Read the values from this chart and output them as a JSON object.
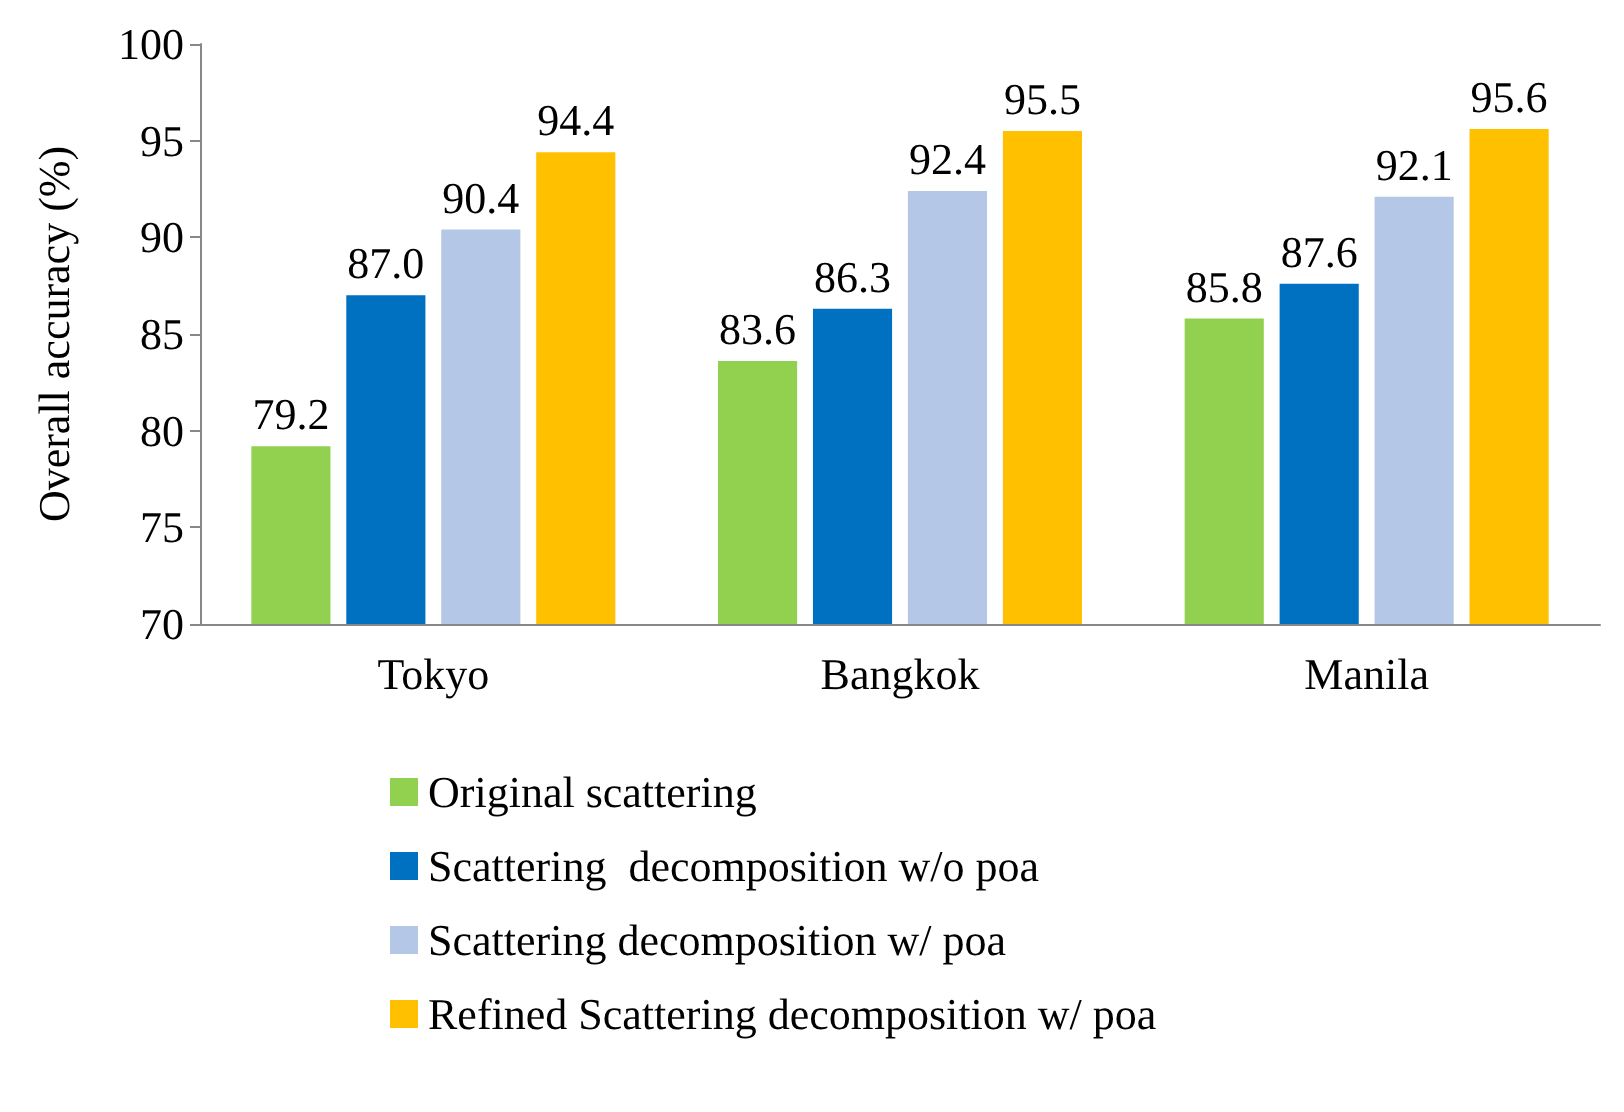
{
  "chart_data": {
    "type": "bar",
    "ylabel": "Overall accuracy (%)",
    "categories": [
      "Tokyo",
      "Bangkok",
      "Manila"
    ],
    "series": [
      {
        "name": "Original scattering",
        "color": "#92d050",
        "values": [
          79.2,
          83.6,
          85.8
        ],
        "value_labels": [
          "79.2",
          "83.6",
          "85.8"
        ]
      },
      {
        "name": "Scattering  decomposition w/o poa",
        "color": "#0070c0",
        "values": [
          87.0,
          86.3,
          87.6
        ],
        "value_labels": [
          "87.0",
          "86.3",
          "87.6"
        ]
      },
      {
        "name": "Scattering decomposition w/ poa",
        "color": "#b4c7e7",
        "values": [
          90.4,
          92.4,
          92.1
        ],
        "value_labels": [
          "90.4",
          "92.4",
          "92.1"
        ]
      },
      {
        "name": "Refined Scattering decomposition w/ poa",
        "color": "#ffc000",
        "values": [
          94.4,
          95.5,
          95.6
        ],
        "value_labels": [
          "94.4",
          "95.5",
          "95.6"
        ]
      }
    ],
    "ylim": [
      70,
      100
    ],
    "yticks": [
      70,
      75,
      80,
      85,
      90,
      95,
      100
    ],
    "grid": false,
    "legend": "bottom"
  }
}
